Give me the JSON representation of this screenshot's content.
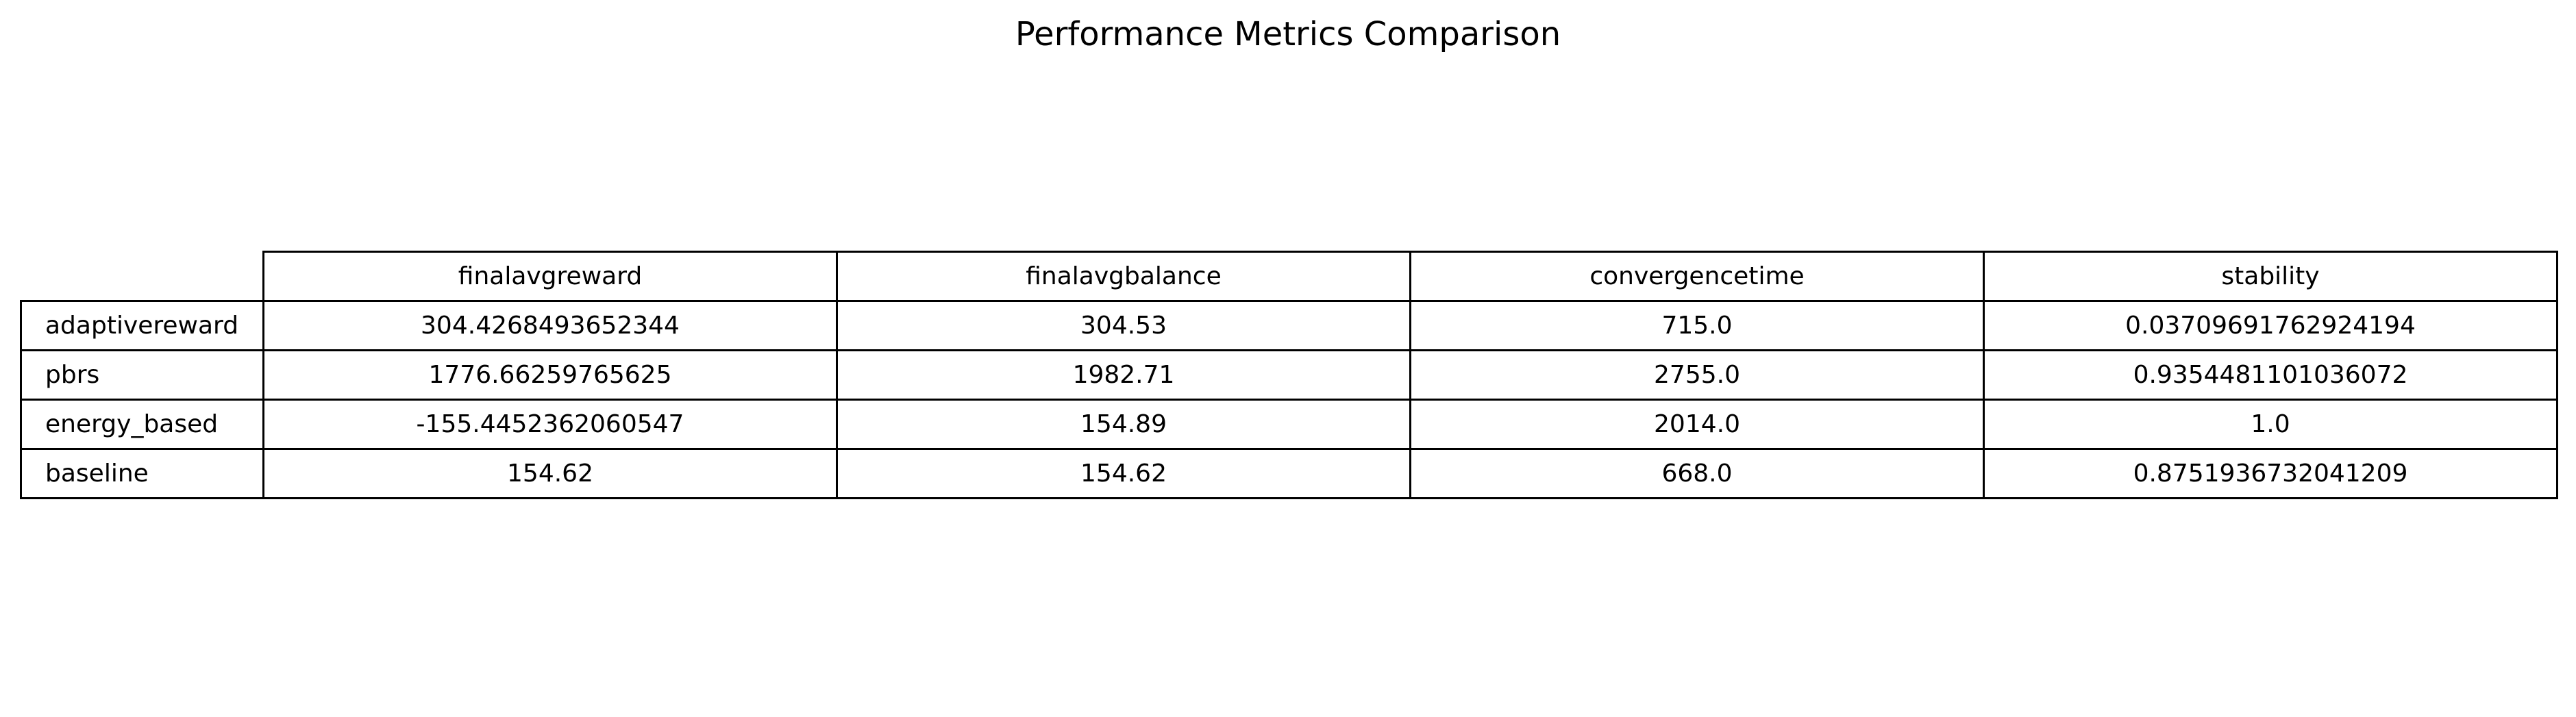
{
  "chart_data": {
    "type": "table",
    "title": "Performance Metrics Comparison",
    "columns": [
      "finalavgreward",
      "finalavgbalance",
      "convergencetime",
      "stability"
    ],
    "rows": [
      {
        "label": "adaptivereward",
        "values": [
          "304.4268493652344",
          "304.53",
          "715.0",
          "0.03709691762924194"
        ]
      },
      {
        "label": "pbrs",
        "values": [
          "1776.66259765625",
          "1982.71",
          "2755.0",
          "0.9354481101036072"
        ]
      },
      {
        "label": "energy_based",
        "values": [
          "-155.4452362060547",
          "154.89",
          "2014.0",
          "1.0"
        ]
      },
      {
        "label": "baseline",
        "values": [
          "154.62",
          "154.62",
          "668.0",
          "0.8751936732041209"
        ]
      }
    ]
  }
}
